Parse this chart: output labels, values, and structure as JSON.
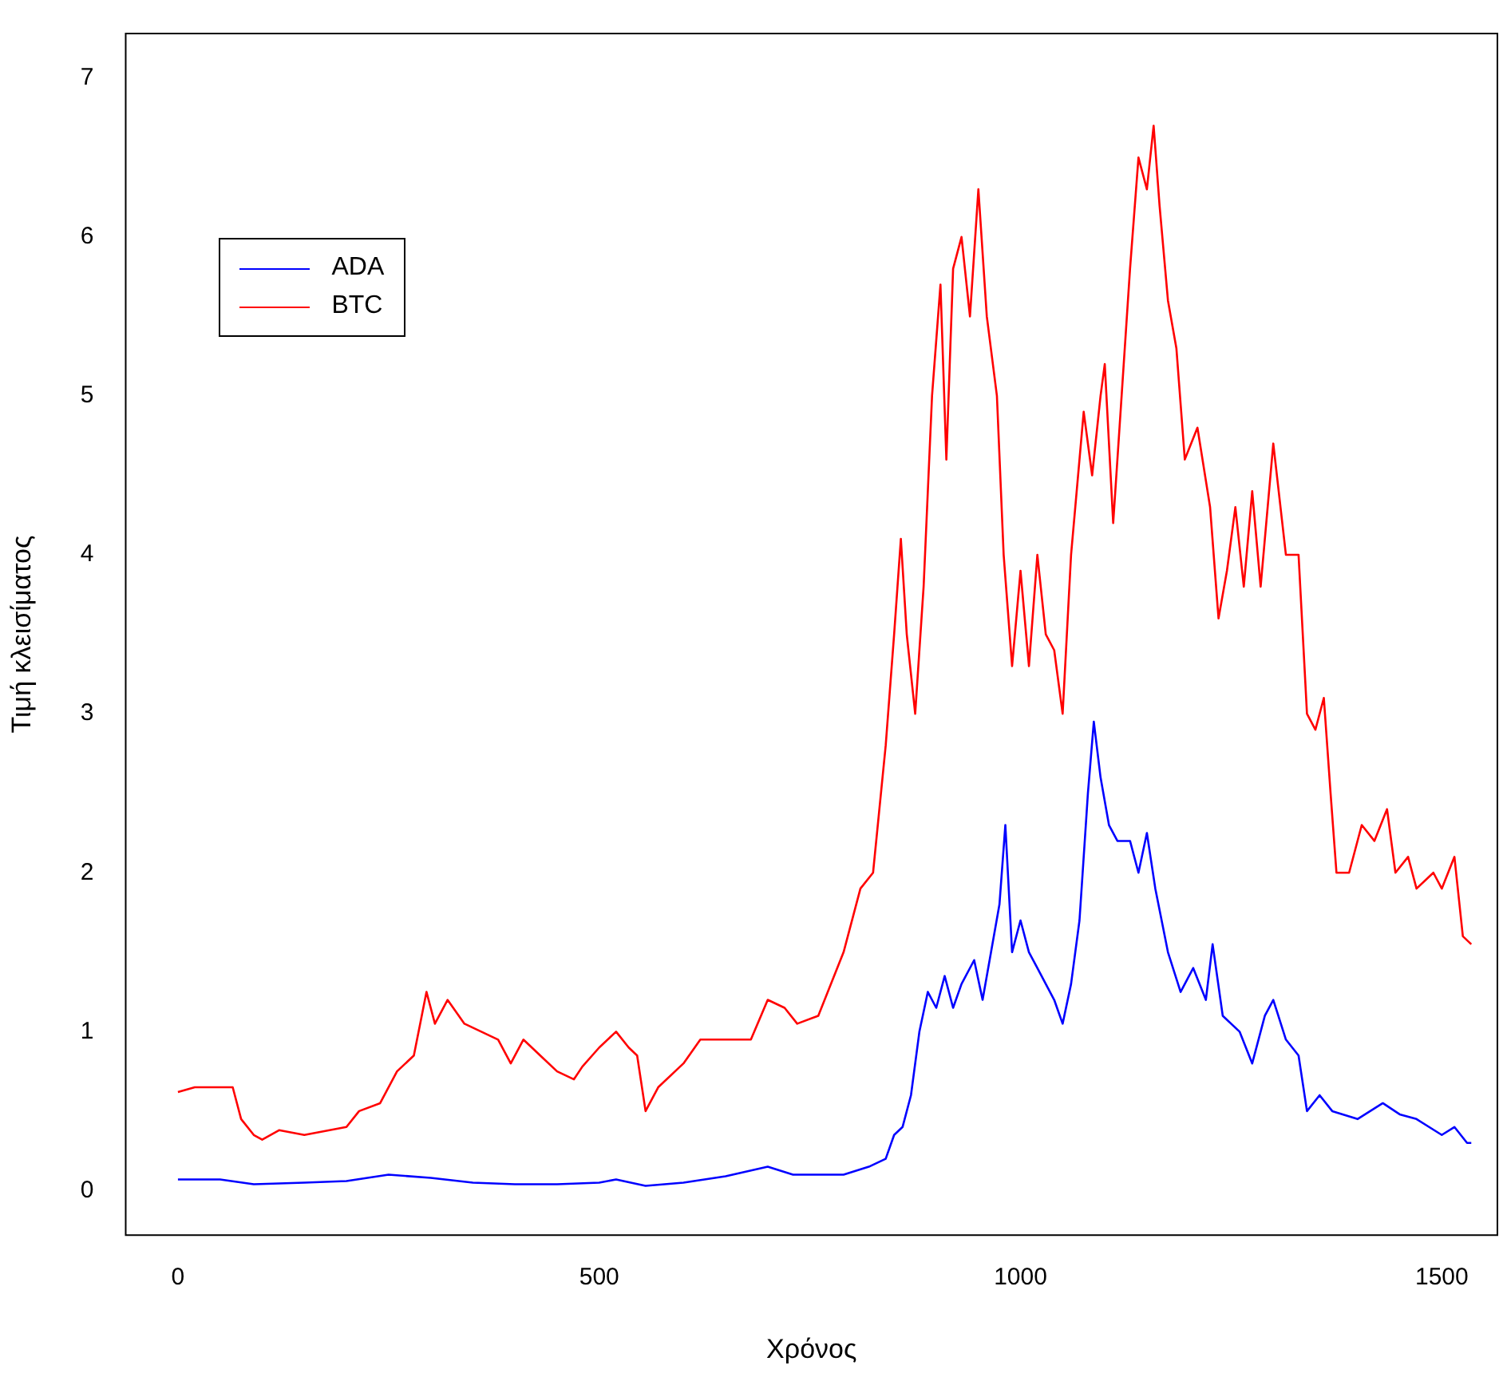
{
  "chart_data": {
    "type": "line",
    "xlabel": "Χρόνος",
    "ylabel": "Τιμή κλεισίματος",
    "xlim": [
      -62,
      1566
    ],
    "ylim": [
      -0.28,
      7.28
    ],
    "xticks": [
      0,
      500,
      1000,
      1500
    ],
    "yticks": [
      0,
      1,
      2,
      3,
      4,
      5,
      6,
      7
    ],
    "grid": false,
    "legend": "top left",
    "marker": "none",
    "line_style": "solid",
    "series": [
      {
        "name": "ADA",
        "color": "#0000ff",
        "x": [
          0,
          50,
          90,
          150,
          200,
          250,
          300,
          350,
          400,
          450,
          500,
          520,
          555,
          600,
          650,
          700,
          730,
          790,
          820,
          840,
          850,
          860,
          870,
          880,
          890,
          900,
          910,
          920,
          930,
          945,
          955,
          965,
          975,
          982,
          990,
          1000,
          1010,
          1020,
          1030,
          1040,
          1050,
          1060,
          1070,
          1080,
          1087,
          1095,
          1105,
          1115,
          1130,
          1140,
          1150,
          1160,
          1175,
          1190,
          1205,
          1220,
          1228,
          1240,
          1260,
          1275,
          1290,
          1300,
          1315,
          1330,
          1340,
          1355,
          1370,
          1400,
          1430,
          1450,
          1470,
          1500,
          1515,
          1530,
          1535
        ],
        "values": [
          0.07,
          0.07,
          0.04,
          0.05,
          0.06,
          0.1,
          0.08,
          0.05,
          0.04,
          0.04,
          0.05,
          0.07,
          0.03,
          0.05,
          0.09,
          0.15,
          0.1,
          0.1,
          0.15,
          0.2,
          0.35,
          0.4,
          0.6,
          1.0,
          1.25,
          1.15,
          1.35,
          1.15,
          1.3,
          1.45,
          1.2,
          1.5,
          1.8,
          2.3,
          1.5,
          1.7,
          1.5,
          1.4,
          1.3,
          1.2,
          1.05,
          1.3,
          1.7,
          2.5,
          2.95,
          2.6,
          2.3,
          2.2,
          2.2,
          2.0,
          2.25,
          1.9,
          1.5,
          1.25,
          1.4,
          1.2,
          1.55,
          1.1,
          1.0,
          0.8,
          1.1,
          1.2,
          0.95,
          0.85,
          0.5,
          0.6,
          0.5,
          0.45,
          0.55,
          0.48,
          0.45,
          0.35,
          0.4,
          0.3,
          0.3
        ]
      },
      {
        "name": "BTC",
        "color": "#ff0000",
        "x": [
          0,
          20,
          65,
          75,
          90,
          100,
          120,
          150,
          200,
          215,
          240,
          260,
          280,
          295,
          305,
          320,
          340,
          360,
          380,
          395,
          410,
          430,
          450,
          470,
          480,
          500,
          520,
          535,
          545,
          555,
          570,
          600,
          620,
          650,
          680,
          700,
          720,
          735,
          760,
          790,
          810,
          825,
          840,
          850,
          858,
          865,
          875,
          885,
          895,
          905,
          912,
          920,
          930,
          940,
          950,
          960,
          972,
          980,
          990,
          1000,
          1010,
          1020,
          1030,
          1040,
          1050,
          1060,
          1075,
          1085,
          1095,
          1100,
          1110,
          1120,
          1130,
          1140,
          1150,
          1158,
          1165,
          1175,
          1185,
          1195,
          1210,
          1225,
          1235,
          1245,
          1255,
          1265,
          1275,
          1285,
          1300,
          1315,
          1330,
          1340,
          1350,
          1360,
          1368,
          1375,
          1390,
          1405,
          1420,
          1435,
          1445,
          1460,
          1470,
          1490,
          1500,
          1515,
          1525,
          1535
        ],
        "values": [
          0.62,
          0.65,
          0.65,
          0.45,
          0.35,
          0.32,
          0.38,
          0.35,
          0.4,
          0.5,
          0.55,
          0.75,
          0.85,
          1.25,
          1.05,
          1.2,
          1.05,
          1.0,
          0.95,
          0.8,
          0.95,
          0.85,
          0.75,
          0.7,
          0.78,
          0.9,
          1.0,
          0.9,
          0.85,
          0.5,
          0.65,
          0.8,
          0.95,
          0.95,
          0.95,
          1.2,
          1.15,
          1.05,
          1.1,
          1.5,
          1.9,
          2.0,
          2.8,
          3.5,
          4.1,
          3.5,
          3.0,
          3.8,
          5.0,
          5.7,
          4.6,
          5.8,
          6.0,
          5.5,
          6.3,
          5.5,
          5.0,
          4.0,
          3.3,
          3.9,
          3.3,
          4.0,
          3.5,
          3.4,
          3.0,
          4.0,
          4.9,
          4.5,
          5.0,
          5.2,
          4.2,
          5.0,
          5.8,
          6.5,
          6.3,
          6.7,
          6.2,
          5.6,
          5.3,
          4.6,
          4.8,
          4.3,
          3.6,
          3.9,
          4.3,
          3.8,
          4.4,
          3.8,
          4.7,
          4.0,
          4.0,
          3.0,
          2.9,
          3.1,
          2.5,
          2.0,
          2.0,
          2.3,
          2.2,
          2.4,
          2.0,
          2.1,
          1.9,
          2.0,
          1.9,
          2.1,
          1.6,
          1.55
        ]
      }
    ]
  }
}
